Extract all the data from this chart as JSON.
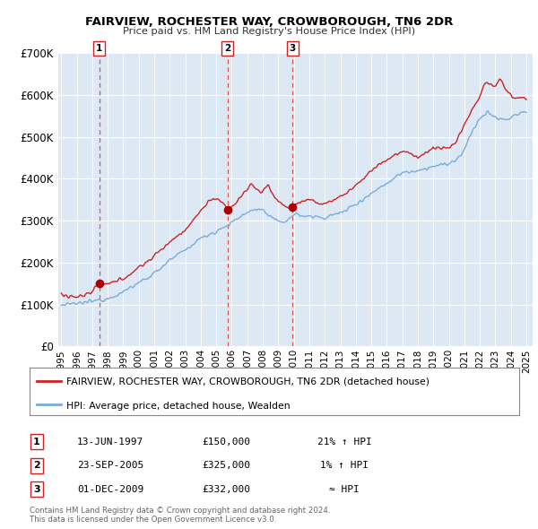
{
  "title": "FAIRVIEW, ROCHESTER WAY, CROWBOROUGH, TN6 2DR",
  "subtitle": "Price paid vs. HM Land Registry's House Price Index (HPI)",
  "legend_line1": "FAIRVIEW, ROCHESTER WAY, CROWBOROUGH, TN6 2DR (detached house)",
  "legend_line2": "HPI: Average price, detached house, Wealden",
  "transactions": [
    {
      "num": 1,
      "date": "13-JUN-1997",
      "price": 150000,
      "rel": "21% ↑ HPI",
      "year": 1997.45
    },
    {
      "num": 2,
      "date": "23-SEP-2005",
      "price": 325000,
      "rel": "1% ↑ HPI",
      "year": 2005.73
    },
    {
      "num": 3,
      "date": "01-DEC-2009",
      "price": 332000,
      "rel": "≈ HPI",
      "year": 2009.92
    }
  ],
  "hpi_color": "#7aabdc",
  "price_color": "#cc2222",
  "point_color": "#aa0000",
  "dashed_line_color": "#dd4444",
  "background_chart": "#dde8f5",
  "background_fig": "#ffffff",
  "ylim": [
    0,
    700000
  ],
  "xlim_start": 1994.8,
  "xlim_end": 2025.4,
  "yticks": [
    0,
    100000,
    200000,
    300000,
    400000,
    500000,
    600000,
    700000
  ],
  "ytick_labels": [
    "£0",
    "£100K",
    "£200K",
    "£300K",
    "£400K",
    "£500K",
    "£600K",
    "£700K"
  ],
  "xticks": [
    1995,
    1996,
    1997,
    1998,
    1999,
    2000,
    2001,
    2002,
    2003,
    2004,
    2005,
    2006,
    2007,
    2008,
    2009,
    2010,
    2011,
    2012,
    2013,
    2014,
    2015,
    2016,
    2017,
    2018,
    2019,
    2020,
    2021,
    2022,
    2023,
    2024,
    2025
  ],
  "footer": "Contains HM Land Registry data © Crown copyright and database right 2024.\nThis data is licensed under the Open Government Licence v3.0."
}
